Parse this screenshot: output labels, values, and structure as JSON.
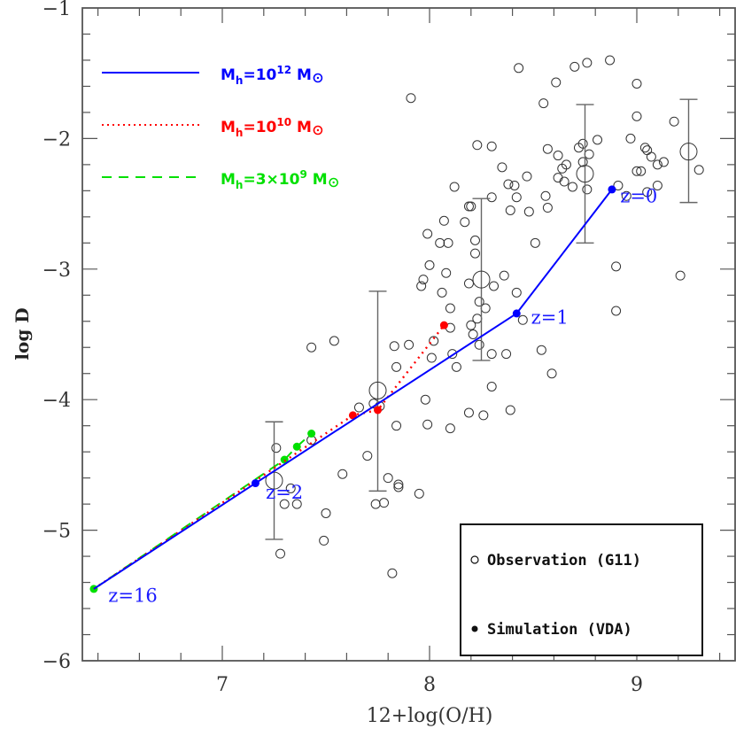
{
  "chart_data": {
    "type": "scatter",
    "title": "",
    "xlabel": "12+log(O/H)",
    "ylabel": "log D",
    "xlim": [
      6.33,
      9.47
    ],
    "ylim": [
      -6,
      -1
    ],
    "xticks": [
      7,
      8,
      9
    ],
    "yticks": [
      -6,
      -5,
      -4,
      -3,
      -2,
      -1
    ],
    "grid": false,
    "legend_lines": [
      {
        "label": "M_h=10^12 M_sun",
        "text_main": "M",
        "sub": "h",
        "eq": "=10",
        "sup": "12",
        "unit": "M",
        "color": "#0000ff",
        "style": "solid"
      },
      {
        "label": "M_h=10^10 M_sun",
        "text_main": "M",
        "sub": "h",
        "eq": "=10",
        "sup": "10",
        "unit": "M",
        "color": "#ff0000",
        "style": "dotted"
      },
      {
        "label": "M_h=3x10^9 M_sun",
        "text_main": "M",
        "sub": "h",
        "eq": "=3×10",
        "sup": "9",
        "unit": "M",
        "color": "#00e000",
        "style": "dashed"
      }
    ],
    "legend_box": [
      {
        "marker": "open-circle",
        "label": "Observation (G11)"
      },
      {
        "marker": "filled-circle",
        "label": "Simulation (VDA)"
      }
    ],
    "series": [
      {
        "name": "M_h=10^12 M_sun",
        "color": "#0000ff",
        "style": "solid",
        "points": [
          [
            6.38,
            -5.45
          ],
          [
            7.16,
            -4.64
          ],
          [
            8.42,
            -3.34
          ],
          [
            8.88,
            -2.39
          ]
        ],
        "markers": [
          [
            7.16,
            -4.64
          ],
          [
            8.42,
            -3.34
          ],
          [
            8.88,
            -2.39
          ]
        ]
      },
      {
        "name": "M_h=10^10 M_sun",
        "color": "#ff0000",
        "style": "dotted",
        "points": [
          [
            6.38,
            -5.45
          ],
          [
            7.63,
            -4.12
          ],
          [
            7.75,
            -4.08
          ],
          [
            8.07,
            -3.43
          ]
        ],
        "markers": [
          [
            7.63,
            -4.12
          ],
          [
            7.75,
            -4.08
          ],
          [
            8.07,
            -3.43
          ]
        ]
      },
      {
        "name": "M_h=3x10^9 M_sun",
        "color": "#00e000",
        "style": "dashed",
        "points": [
          [
            6.38,
            -5.45
          ],
          [
            7.3,
            -4.46
          ],
          [
            7.36,
            -4.36
          ],
          [
            7.43,
            -4.26
          ]
        ],
        "markers": [
          [
            6.38,
            -5.45
          ],
          [
            7.3,
            -4.46
          ],
          [
            7.36,
            -4.36
          ],
          [
            7.43,
            -4.26
          ]
        ]
      }
    ],
    "redshift_labels": [
      {
        "text": "z=16",
        "x": 6.45,
        "y": -5.55
      },
      {
        "text": "z=2",
        "x": 7.21,
        "y": -4.76
      },
      {
        "text": "z=1",
        "x": 8.49,
        "y": -3.42
      },
      {
        "text": "z=0",
        "x": 8.92,
        "y": -2.49
      }
    ],
    "binned_observations": [
      {
        "x": 7.25,
        "y": -4.62,
        "ylo": -5.07,
        "yhi": -4.17
      },
      {
        "x": 7.75,
        "y": -3.93,
        "ylo": -4.7,
        "yhi": -3.17
      },
      {
        "x": 8.25,
        "y": -3.08,
        "ylo": -3.7,
        "yhi": -2.46
      },
      {
        "x": 8.75,
        "y": -2.27,
        "ylo": -2.8,
        "yhi": -1.74
      },
      {
        "x": 9.25,
        "y": -2.1,
        "ylo": -2.49,
        "yhi": -1.7
      }
    ],
    "observations": [
      [
        7.26,
        -4.37
      ],
      [
        7.3,
        -4.8
      ],
      [
        7.36,
        -4.8
      ],
      [
        7.33,
        -4.68
      ],
      [
        7.28,
        -5.18
      ],
      [
        7.49,
        -5.08
      ],
      [
        7.5,
        -4.87
      ],
      [
        7.58,
        -4.57
      ],
      [
        7.54,
        -3.55
      ],
      [
        7.43,
        -3.6
      ],
      [
        7.43,
        -4.31
      ],
      [
        7.66,
        -4.06
      ],
      [
        7.7,
        -4.43
      ],
      [
        7.74,
        -4.8
      ],
      [
        7.78,
        -4.79
      ],
      [
        7.8,
        -4.6
      ],
      [
        7.76,
        -4.05
      ],
      [
        7.73,
        -4.03
      ],
      [
        7.84,
        -4.2
      ],
      [
        7.85,
        -4.65
      ],
      [
        7.85,
        -4.67
      ],
      [
        7.82,
        -5.33
      ],
      [
        7.84,
        -3.75
      ],
      [
        7.83,
        -3.59
      ],
      [
        7.9,
        -3.58
      ],
      [
        7.91,
        -1.69
      ],
      [
        7.95,
        -4.72
      ],
      [
        7.97,
        -3.08
      ],
      [
        7.96,
        -3.13
      ],
      [
        7.98,
        -4.0
      ],
      [
        7.99,
        -4.19
      ],
      [
        7.99,
        -2.73
      ],
      [
        8.0,
        -2.97
      ],
      [
        8.01,
        -3.68
      ],
      [
        8.02,
        -3.55
      ],
      [
        8.06,
        -3.18
      ],
      [
        8.08,
        -3.03
      ],
      [
        8.05,
        -2.8
      ],
      [
        8.07,
        -2.63
      ],
      [
        8.09,
        -2.8
      ],
      [
        8.1,
        -3.3
      ],
      [
        8.1,
        -3.45
      ],
      [
        8.11,
        -3.65
      ],
      [
        8.1,
        -4.22
      ],
      [
        8.12,
        -2.37
      ],
      [
        8.13,
        -3.75
      ],
      [
        8.17,
        -2.64
      ],
      [
        8.19,
        -2.52
      ],
      [
        8.2,
        -2.52
      ],
      [
        8.19,
        -3.11
      ],
      [
        8.2,
        -3.43
      ],
      [
        8.21,
        -3.5
      ],
      [
        8.19,
        -4.1
      ],
      [
        8.23,
        -2.05
      ],
      [
        8.22,
        -2.78
      ],
      [
        8.22,
        -2.88
      ],
      [
        8.23,
        -3.38
      ],
      [
        8.24,
        -3.58
      ],
      [
        8.24,
        -3.25
      ],
      [
        8.26,
        -4.12
      ],
      [
        8.27,
        -3.3
      ],
      [
        8.3,
        -2.06
      ],
      [
        8.3,
        -2.45
      ],
      [
        8.31,
        -3.13
      ],
      [
        8.3,
        -3.65
      ],
      [
        8.3,
        -3.9
      ],
      [
        8.35,
        -2.22
      ],
      [
        8.38,
        -2.35
      ],
      [
        8.39,
        -2.55
      ],
      [
        8.36,
        -3.05
      ],
      [
        8.37,
        -3.65
      ],
      [
        8.43,
        -1.46
      ],
      [
        8.41,
        -2.36
      ],
      [
        8.42,
        -2.45
      ],
      [
        8.42,
        -3.18
      ],
      [
        8.45,
        -3.39
      ],
      [
        8.39,
        -4.08
      ],
      [
        8.47,
        -2.29
      ],
      [
        8.48,
        -2.56
      ],
      [
        8.51,
        -2.8
      ],
      [
        8.54,
        -3.62
      ],
      [
        8.55,
        -1.73
      ],
      [
        8.57,
        -2.08
      ],
      [
        8.56,
        -2.44
      ],
      [
        8.57,
        -2.53
      ],
      [
        8.59,
        -3.8
      ],
      [
        8.61,
        -1.57
      ],
      [
        8.62,
        -2.3
      ],
      [
        8.62,
        -2.13
      ],
      [
        8.64,
        -2.23
      ],
      [
        8.65,
        -2.33
      ],
      [
        8.66,
        -2.2
      ],
      [
        8.69,
        -2.37
      ],
      [
        8.7,
        -1.45
      ],
      [
        8.72,
        -2.07
      ],
      [
        8.74,
        -2.18
      ],
      [
        8.76,
        -2.39
      ],
      [
        8.76,
        -1.42
      ],
      [
        8.77,
        -2.12
      ],
      [
        8.74,
        -2.04
      ],
      [
        8.81,
        -2.01
      ],
      [
        8.87,
        -1.4
      ],
      [
        8.91,
        -2.36
      ],
      [
        8.9,
        -2.98
      ],
      [
        8.9,
        -3.32
      ],
      [
        8.95,
        -2.44
      ],
      [
        8.97,
        -2.0
      ],
      [
        9.0,
        -1.58
      ],
      [
        9.0,
        -1.83
      ],
      [
        9.0,
        -2.25
      ],
      [
        9.02,
        -2.25
      ],
      [
        9.04,
        -2.07
      ],
      [
        9.05,
        -2.41
      ],
      [
        9.05,
        -2.09
      ],
      [
        9.07,
        -2.14
      ],
      [
        9.1,
        -2.36
      ],
      [
        9.1,
        -2.2
      ],
      [
        9.13,
        -2.18
      ],
      [
        9.18,
        -1.87
      ],
      [
        9.21,
        -3.05
      ],
      [
        9.3,
        -2.24
      ]
    ]
  }
}
